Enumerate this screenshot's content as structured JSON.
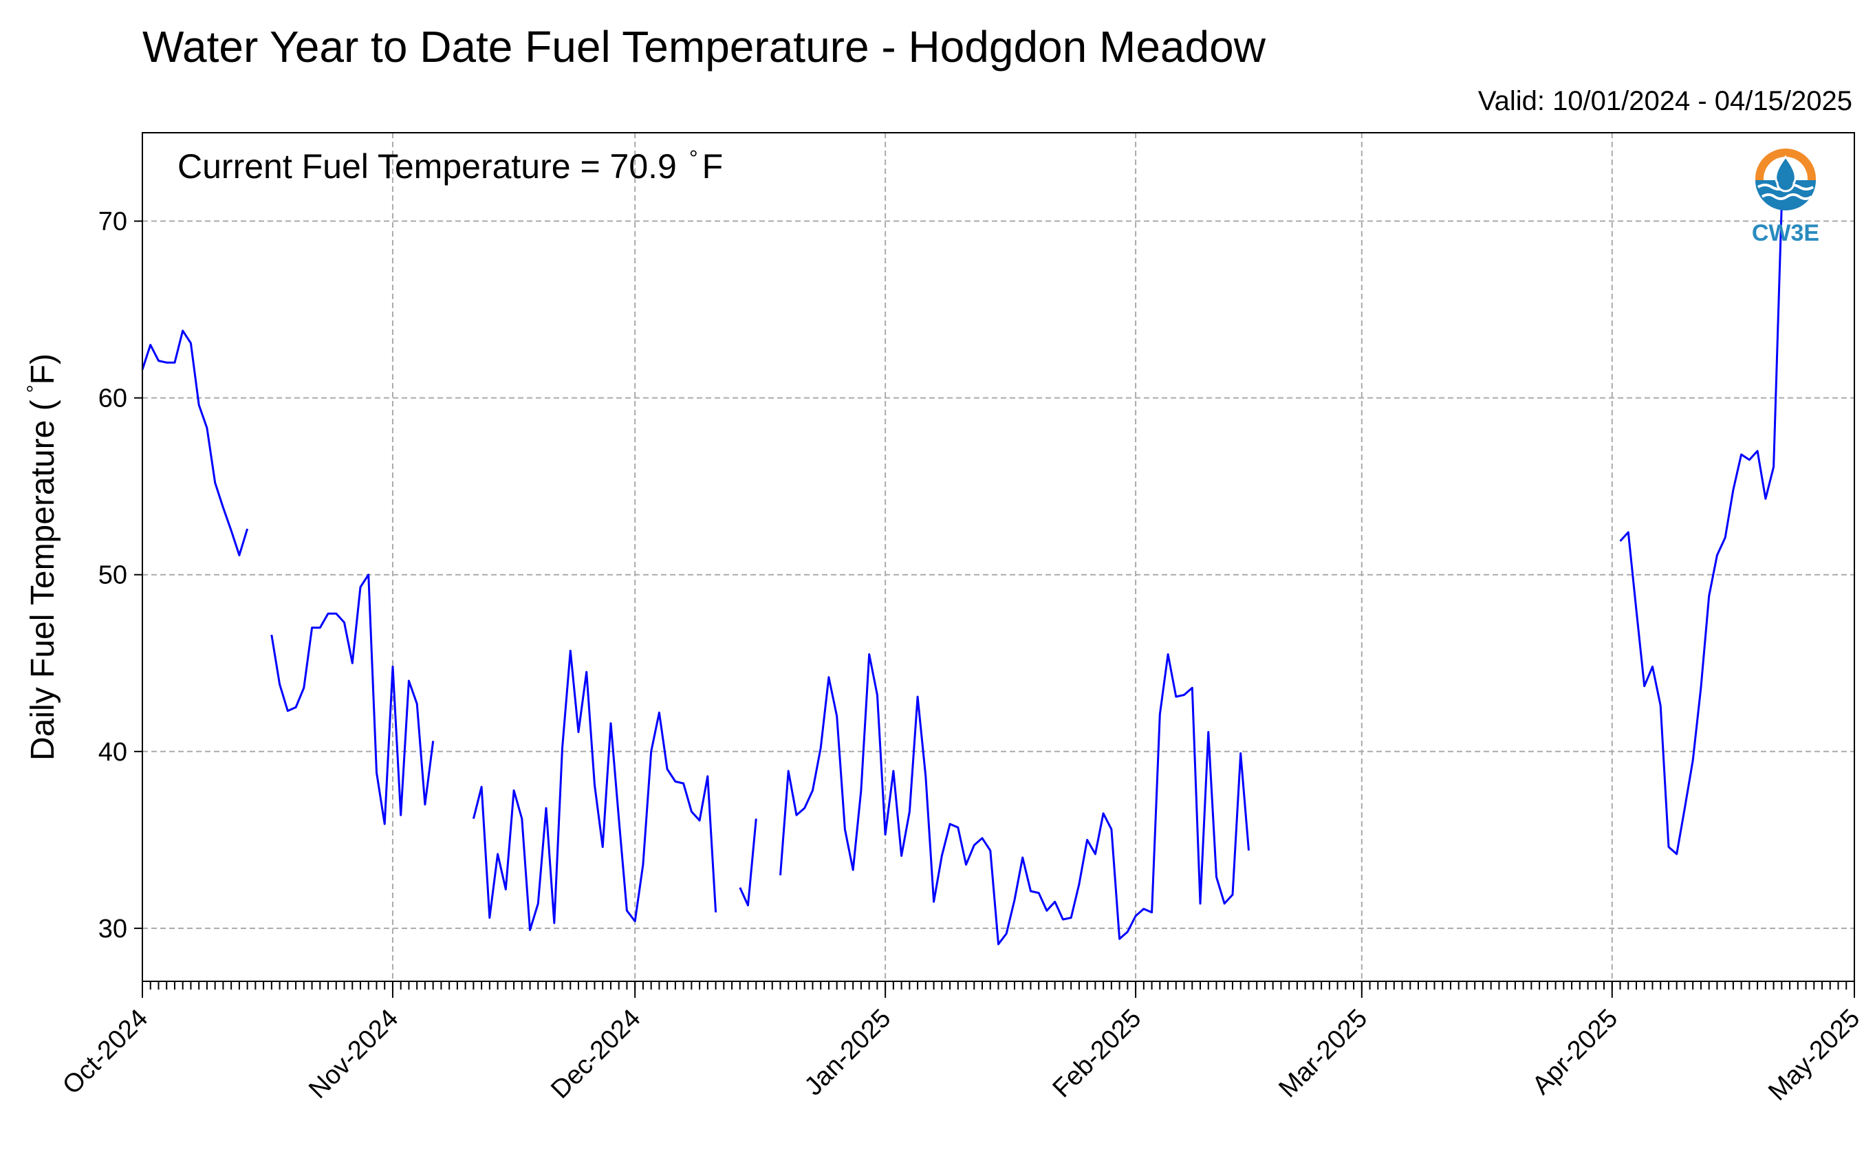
{
  "chart_data": {
    "type": "line",
    "title": "Water Year to Date Fuel Temperature - Hodgdon Meadow",
    "subtitle": "Valid: 10/01/2024 - 04/15/2025",
    "ylabel": "Daily Fuel Temperature ( $^\\circ$F)",
    "ylabel_text": "Daily Fuel Temperature (",
    "ylabel_unit": "F)",
    "annotation_prefix": "Current Fuel Temperature = 70.9",
    "annotation_unit": "F",
    "xlim": [
      "2024-10-01",
      "2025-05-01"
    ],
    "ylim": [
      27,
      75
    ],
    "yticks": [
      30,
      40,
      50,
      60,
      70
    ],
    "xticks": [
      {
        "date": "2024-10-01",
        "label": "Oct-2024"
      },
      {
        "date": "2024-11-01",
        "label": "Nov-2024"
      },
      {
        "date": "2024-12-01",
        "label": "Dec-2024"
      },
      {
        "date": "2025-01-01",
        "label": "Jan-2025"
      },
      {
        "date": "2025-02-01",
        "label": "Feb-2025"
      },
      {
        "date": "2025-03-01",
        "label": "Mar-2025"
      },
      {
        "date": "2025-04-01",
        "label": "Apr-2025"
      },
      {
        "date": "2025-05-01",
        "label": "May-2025"
      }
    ],
    "grid": true,
    "line_color": "#0000ff",
    "series": [
      {
        "start_date": "2024-10-01",
        "values": [
          61.6,
          63.0,
          62.1,
          62.0,
          62.0,
          63.8,
          63.1,
          59.6,
          58.3,
          55.2,
          53.8,
          52.5,
          51.1,
          52.6,
          null,
          null,
          46.6,
          43.8,
          42.3,
          42.5,
          43.6,
          47.0,
          47.0,
          47.8,
          47.8,
          47.3,
          45.0,
          49.3,
          50.0,
          38.8,
          35.9,
          44.8,
          36.4,
          44.0,
          42.7,
          37.0,
          40.6,
          null,
          null,
          null,
          null,
          36.2,
          38.0,
          30.6,
          34.2,
          32.2,
          37.8,
          36.2,
          29.9,
          31.4,
          36.8,
          30.3,
          40.2,
          45.7,
          41.1,
          44.5,
          38.1,
          34.6,
          41.6,
          36.2,
          31.0,
          30.4,
          33.6,
          40.0,
          42.2,
          39.0,
          38.3,
          38.2,
          36.6,
          36.1,
          38.6,
          30.9,
          null,
          null,
          32.3,
          31.3,
          36.2,
          null,
          null,
          33.0,
          38.9,
          36.4,
          36.8,
          37.8,
          40.2,
          44.2,
          42.0,
          35.6,
          33.3,
          37.8,
          45.5,
          43.2,
          35.3,
          38.9,
          34.1,
          36.6,
          43.1,
          38.6,
          31.5,
          34.1,
          35.9,
          35.7,
          33.6,
          34.7,
          35.1,
          34.4,
          29.1,
          29.7,
          31.6,
          34.0,
          32.1,
          32.0,
          31.0,
          31.5,
          30.5,
          30.6,
          32.5,
          35.0,
          34.2,
          36.5,
          35.6,
          29.4,
          29.8,
          30.7,
          31.1,
          30.9,
          42.1,
          45.5,
          43.1,
          43.2,
          43.6,
          31.4,
          41.1,
          32.9,
          31.4,
          31.9,
          39.9,
          34.4,
          null,
          null,
          null,
          null,
          null,
          null,
          null,
          null,
          null,
          null,
          null,
          null,
          null,
          null,
          null,
          null,
          null,
          null,
          null,
          null,
          null,
          null,
          null,
          null,
          null,
          null,
          null,
          null,
          null,
          null,
          null,
          null,
          null,
          null,
          null,
          null,
          null,
          null,
          null,
          null,
          null,
          null,
          null,
          null,
          null,
          51.9,
          52.4,
          48.0,
          43.7,
          44.8,
          42.6,
          34.6,
          34.2,
          36.8,
          39.5,
          43.6,
          48.8,
          51.1,
          52.1,
          54.8,
          56.8,
          56.5,
          57.0,
          54.3,
          56.1,
          70.9
        ]
      }
    ]
  },
  "logo": {
    "text": "CW3E",
    "icon": "cw3e-water-drop-logo-icon",
    "ring_color": "#f28c28",
    "wave_color": "#1b7fb8"
  }
}
